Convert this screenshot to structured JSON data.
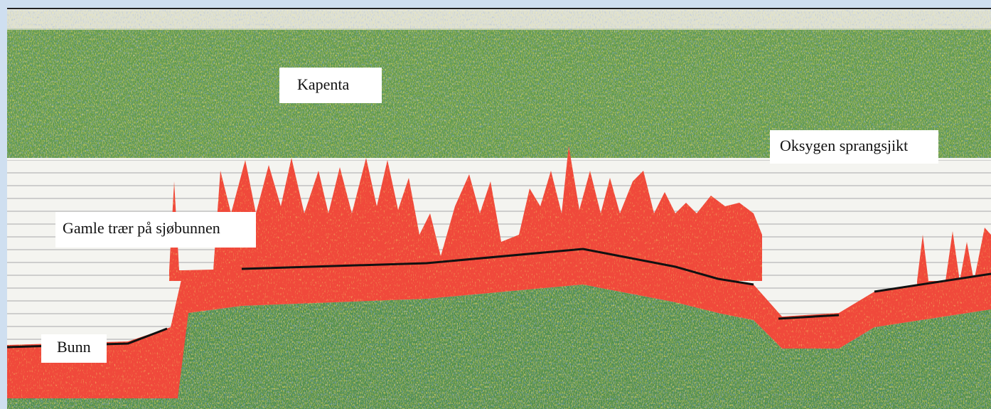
{
  "labels": {
    "kapenta": "Kapenta",
    "oxygen": "Oksygen sprangsjikt",
    "trees": "Gamle trær på sjøbunnen",
    "bottom": "Bunn"
  }
}
